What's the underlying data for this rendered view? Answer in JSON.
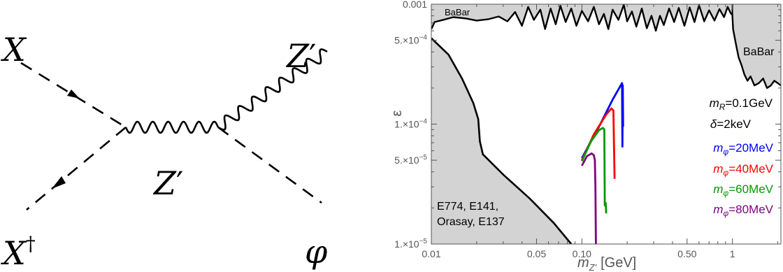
{
  "feynman": {
    "labels": {
      "x_in": "X",
      "x_out": "X",
      "x_out_sup": "†",
      "zprime_internal": "Z",
      "zprime_internal_prime": "′",
      "zprime_out": "Z",
      "zprime_out_prime": "′",
      "phi": "φ"
    }
  },
  "chart_data": {
    "type": "line",
    "xscale": "log",
    "yscale": "log",
    "xlim": [
      0.01,
      2.1
    ],
    "ylim": [
      1e-05,
      0.001
    ],
    "xlabel": "m",
    "xlabel_sub": "Z'",
    "xlabel_unit": "[GeV]",
    "ylabel": "ε",
    "x_ticks": [
      {
        "value": 0.01,
        "label": "0.01"
      },
      {
        "value": 0.05,
        "label": "0.05"
      },
      {
        "value": 0.1,
        "label": "0.10"
      },
      {
        "value": 0.5,
        "label": "0.50"
      },
      {
        "value": 1,
        "label": "1"
      }
    ],
    "y_ticks": [
      {
        "value": 1e-05,
        "mant": "1.×10",
        "exp": "−5"
      },
      {
        "value": 5e-05,
        "mant": "5.×10",
        "exp": "−5"
      },
      {
        "value": 0.0001,
        "mant": "1.×10",
        "exp": "−4"
      },
      {
        "value": 0.0005,
        "mant": "5.×10",
        "exp": "−4"
      },
      {
        "value": 0.001,
        "label": "0.001"
      }
    ],
    "excluded_regions": [
      {
        "label_lines": [
          "E774, E141,",
          "Orasay, E137"
        ],
        "color": "#d3d3d3",
        "boundary": [
          [
            0.01,
            0.00052
          ],
          [
            0.013,
            0.00038
          ],
          [
            0.016,
            0.00024
          ],
          [
            0.019,
            0.00015
          ],
          [
            0.0205,
            0.00011
          ],
          [
            0.021,
            7.2e-05
          ],
          [
            0.022,
            5.6e-05
          ],
          [
            0.03,
            3.8e-05
          ],
          [
            0.045,
            2.4e-05
          ],
          [
            0.065,
            1.5e-05
          ],
          [
            0.085,
            1e-05
          ]
        ]
      },
      {
        "label": "BaBar",
        "color": "#d3d3d3",
        "boundary": [
          [
            0.01,
            0.00062
          ],
          [
            0.0105,
            0.00071
          ],
          [
            0.012,
            0.00074
          ],
          [
            0.014,
            0.00078
          ],
          [
            0.017,
            0.00076
          ],
          [
            0.02,
            0.00073
          ],
          [
            0.024,
            0.00075
          ],
          [
            0.028,
            0.00079
          ],
          [
            0.032,
            0.00072
          ],
          [
            0.036,
            0.00086
          ],
          [
            0.04,
            0.00066
          ],
          [
            0.044,
            0.00095
          ],
          [
            0.048,
            0.00074
          ],
          [
            0.053,
            0.0009
          ],
          [
            0.057,
            0.00062
          ],
          [
            0.062,
            0.00092
          ],
          [
            0.067,
            0.00068
          ],
          [
            0.072,
            0.00097
          ],
          [
            0.078,
            0.00071
          ],
          [
            0.085,
            0.00092
          ],
          [
            0.092,
            0.00066
          ],
          [
            0.1,
            0.00088
          ],
          [
            0.11,
            0.00072
          ],
          [
            0.12,
            0.00095
          ],
          [
            0.13,
            0.00068
          ],
          [
            0.14,
            0.00083
          ],
          [
            0.15,
            0.00062
          ],
          [
            0.16,
            0.0009
          ],
          [
            0.175,
            0.00074
          ],
          [
            0.19,
            0.00099
          ],
          [
            0.2,
            0.00072
          ],
          [
            0.215,
            0.00087
          ],
          [
            0.23,
            0.00065
          ],
          [
            0.25,
            0.00092
          ],
          [
            0.27,
            0.00063
          ],
          [
            0.29,
            0.0008
          ],
          [
            0.31,
            0.0006
          ],
          [
            0.33,
            0.0008
          ],
          [
            0.35,
            0.00067
          ],
          [
            0.38,
            0.00092
          ],
          [
            0.41,
            0.00071
          ],
          [
            0.44,
            0.00093
          ],
          [
            0.48,
            0.00066
          ],
          [
            0.52,
            0.00094
          ],
          [
            0.56,
            0.00071
          ],
          [
            0.6,
            0.00098
          ],
          [
            0.65,
            0.00072
          ],
          [
            0.7,
            0.00089
          ],
          [
            0.76,
            0.00073
          ],
          [
            0.82,
            0.00091
          ],
          [
            0.88,
            0.00078
          ],
          [
            0.93,
            0.00095
          ],
          [
            0.97,
            0.00085
          ],
          [
            1.0,
            0.00081
          ],
          [
            1.01,
            0.00062
          ],
          [
            1.05,
            0.00048
          ],
          [
            1.1,
            0.00036
          ],
          [
            1.15,
            0.00031
          ],
          [
            1.2,
            0.00026
          ],
          [
            1.26,
            0.00023
          ],
          [
            1.32,
            0.00025
          ],
          [
            1.4,
            0.00021
          ],
          [
            1.5,
            0.00022
          ],
          [
            1.6,
            0.00024
          ],
          [
            1.7,
            0.0002
          ],
          [
            1.8,
            0.00021
          ],
          [
            1.9,
            0.00023
          ],
          [
            2.0,
            0.00022
          ],
          [
            2.1,
            0.00021
          ]
        ]
      }
    ],
    "annotation": {
      "lines": [
        {
          "var": "m",
          "sub": "R",
          "value": "=0.1GeV"
        },
        {
          "var": "δ",
          "value": "=2keV"
        }
      ]
    },
    "series": [
      {
        "name_var": "m",
        "name_sub": "φ",
        "name_value": "=20MeV",
        "color": "#0000ff",
        "points": [
          [
            0.1,
            5.2e-05
          ],
          [
            0.13,
            9.5e-05
          ],
          [
            0.16,
            0.00016
          ],
          [
            0.185,
            0.00022
          ],
          [
            0.186,
            6.5e-05
          ],
          [
            0.187,
            0.00021
          ],
          [
            0.188,
            9.5e-05
          ]
        ]
      },
      {
        "name_var": "m",
        "name_sub": "φ",
        "name_value": "=40MeV",
        "color": "#ff0000",
        "points": [
          [
            0.1,
            5e-05
          ],
          [
            0.12,
            8.2e-05
          ],
          [
            0.145,
            0.00012
          ],
          [
            0.157,
            0.000135
          ],
          [
            0.162,
            0.00013
          ],
          [
            0.165,
            3.5e-05
          ]
        ]
      },
      {
        "name_var": "m",
        "name_sub": "φ",
        "name_value": "=60MeV",
        "color": "#009900",
        "points": [
          [
            0.1,
            4.9e-05
          ],
          [
            0.115,
            7.2e-05
          ],
          [
            0.13,
            8.9e-05
          ],
          [
            0.138,
            9.3e-05
          ],
          [
            0.141,
            9e-05
          ],
          [
            0.142,
            2.1e-05
          ],
          [
            0.144,
            2.2e-05
          ],
          [
            0.145,
            1.8e-05
          ]
        ]
      },
      {
        "name_var": "m",
        "name_sub": "φ",
        "name_value": "=80MeV",
        "color": "#7f007f",
        "points": [
          [
            0.1,
            4.5e-05
          ],
          [
            0.108,
            5.4e-05
          ],
          [
            0.116,
            5.7e-05
          ],
          [
            0.12,
            5.5e-05
          ],
          [
            0.122,
            5e-05
          ],
          [
            0.123,
            3e-05
          ],
          [
            0.124,
            1e-05
          ]
        ]
      }
    ]
  }
}
